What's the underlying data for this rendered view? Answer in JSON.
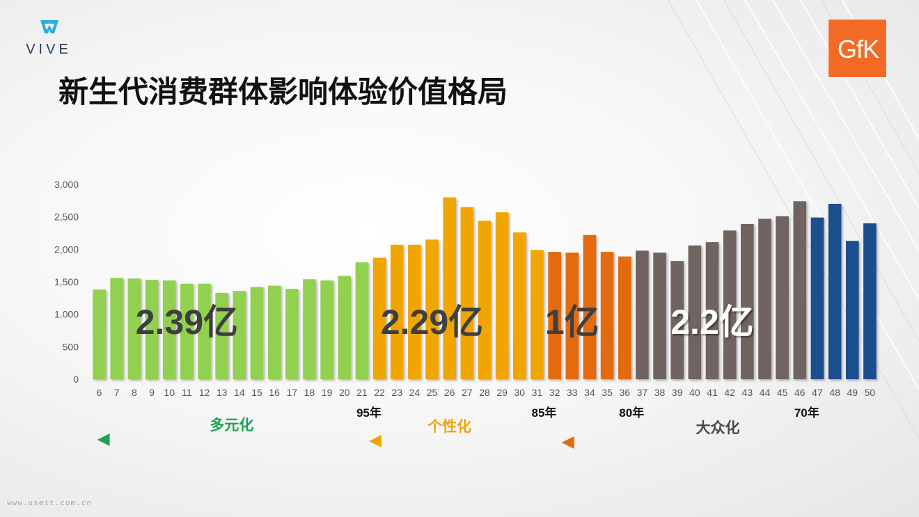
{
  "logos": {
    "vive": "VIVE",
    "gfk": "GfK"
  },
  "title": "新生代消费群体影响体验价值格局",
  "chart_data": {
    "type": "bar",
    "categories": [
      "6",
      "7",
      "8",
      "9",
      "10",
      "11",
      "12",
      "13",
      "14",
      "15",
      "16",
      "17",
      "18",
      "19",
      "20",
      "21",
      "22",
      "23",
      "24",
      "25",
      "26",
      "27",
      "28",
      "29",
      "30",
      "31",
      "32",
      "33",
      "34",
      "35",
      "36",
      "37",
      "38",
      "39",
      "40",
      "41",
      "42",
      "43",
      "44",
      "45",
      "46",
      "47",
      "48",
      "49",
      "50"
    ],
    "values": [
      1380,
      1560,
      1550,
      1530,
      1520,
      1470,
      1470,
      1330,
      1360,
      1420,
      1440,
      1390,
      1540,
      1520,
      1590,
      1800,
      1870,
      2070,
      2070,
      2150,
      2800,
      2650,
      2440,
      2570,
      2260,
      1990,
      1960,
      1950,
      2220,
      1960,
      1890,
      1980,
      1950,
      1820,
      2060,
      2110,
      2290,
      2390,
      2470,
      2510,
      2740,
      2490,
      2700,
      2130,
      2400
    ],
    "bar_colors": [
      "#92d050",
      "#92d050",
      "#92d050",
      "#92d050",
      "#92d050",
      "#92d050",
      "#92d050",
      "#92d050",
      "#92d050",
      "#92d050",
      "#92d050",
      "#92d050",
      "#92d050",
      "#92d050",
      "#92d050",
      "#92d050",
      "#f0a500",
      "#f0a500",
      "#f0a500",
      "#f0a500",
      "#f0a500",
      "#f0a500",
      "#f0a500",
      "#f0a500",
      "#f0a500",
      "#f0a500",
      "#e36b0a",
      "#e36b0a",
      "#e36b0a",
      "#e36b0a",
      "#e36b0a",
      "#6f6460",
      "#6f6460",
      "#6f6460",
      "#6f6460",
      "#6f6460",
      "#6f6460",
      "#6f6460",
      "#6f6460",
      "#6f6460",
      "#6f6460",
      "#1f4e8c",
      "#1f4e8c",
      "#1f4e8c",
      "#1f4e8c"
    ],
    "ylim": [
      0,
      3000
    ],
    "yticks": [
      "0",
      "500",
      "1,000",
      "1,500",
      "2,000",
      "2,500",
      "3,000"
    ],
    "grid": false,
    "totals": [
      {
        "label": "2.39亿",
        "color": "#3f3f3f",
        "category": "11",
        "shadow": false
      },
      {
        "label": "2.29亿",
        "color": "#3f3f3f",
        "category": "25",
        "shadow": false
      },
      {
        "label": "1亿",
        "color": "#3f3f3f",
        "category": "33",
        "shadow": false
      },
      {
        "label": "2.2亿",
        "color": "#ffffff",
        "category": "41",
        "shadow": true
      }
    ],
    "generation_labels": [
      {
        "label": "95年",
        "category": "21"
      },
      {
        "label": "85年",
        "category": "31"
      },
      {
        "label": "80年",
        "category": "36"
      },
      {
        "label": "70年",
        "category": "46"
      }
    ],
    "segments": [
      {
        "label": "多元化",
        "color": "#1aa452",
        "from": "6",
        "to": "21"
      },
      {
        "label": "个性化",
        "color": "#f0a500",
        "from": "21",
        "to": "31"
      },
      {
        "label": "大众化",
        "color": "#e36b0a",
        "from": "32",
        "to": "50"
      }
    ]
  },
  "footer": "www.useit.com.cn"
}
